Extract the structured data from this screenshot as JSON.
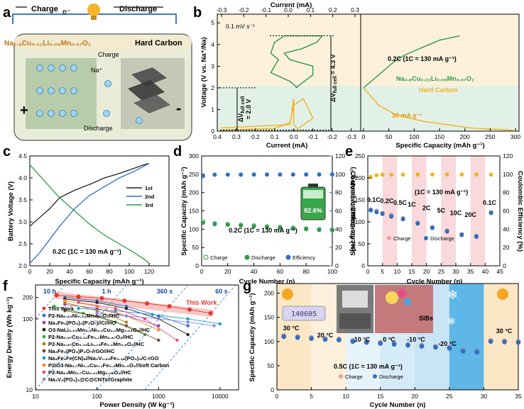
{
  "panels": {
    "a": {
      "label": "a",
      "charge_top": "Charge",
      "electron": "e⁻",
      "discharge_top": "Discharge",
      "cathode": "Na₀.₈Cu₀.₂₂Li₀.₀₈Mn₀.₆₇O₂",
      "anode": "Hard Carbon",
      "ion": "Na⁺",
      "charge_arrow": "Charge",
      "discharge_arrow": "Discharge",
      "plus": "+",
      "minus": "-"
    },
    "b": {
      "label": "b",
      "sweep": "0.1 mV s⁻¹",
      "dv_full": "ΔV",
      "dv_full_sub": "full cell",
      "dv_full_val": "= 4.3 V",
      "dv_half": "ΔV",
      "dv_half_sub": "full cell",
      "dv_half_val": "= 2.0 V",
      "rate_text": "0.2C (1C = 130 mA g⁻¹)",
      "cathode_label": "Na₀.₈Cu₀.₂₂Li₀.₀₈Mn₀.₆₇O₂",
      "anode_label": "Hard Carbon",
      "anode_rate": "30 mA g⁻¹",
      "top_axis_title": "Current (mA)",
      "left_axis_title": "Voltage (V vs. Na⁺/Na)",
      "bottom_left_title": "Current (mA)",
      "bottom_right_title": "Specific Capacity (mAh g⁻¹)",
      "top_ticks": [
        "-0.3",
        "-0.2",
        "-0.1",
        "0.0",
        "0.1",
        "0.2",
        "0.3"
      ],
      "bottom_left_ticks": [
        "0.4",
        "0.3",
        "0.2",
        "0.1",
        "0.0",
        "-0.1",
        "-0.2",
        "-0.3"
      ],
      "y_ticks": [
        "0",
        "1",
        "2",
        "3",
        "4",
        "5"
      ],
      "bottom_right_ticks": [
        "0",
        "50",
        "100",
        "150",
        "200",
        "250",
        "300"
      ]
    },
    "c": {
      "label": "c",
      "ylabel": "Battery Voltage (V)",
      "xlabel": "Specific Capacity (mAh g⁻¹)",
      "rate_text": "0.2C (1C = 130 mA g⁻¹)",
      "legend": [
        "1st",
        "2nd",
        "3rd"
      ]
    },
    "d": {
      "label": "d",
      "ylabel": "Specific Capacity (mAh g⁻¹)",
      "y2label": "Coulombic Efficiency (%)",
      "xlabel": "Cycle Number (n)",
      "rate_text": "0.2C (1C = 130 mA g⁻¹)",
      "battery_pct": "82.6%",
      "legend": [
        "Charge",
        "Discharge",
        "Efficiency"
      ]
    },
    "e": {
      "label": "e",
      "ylabel": "Specific Capacity (mAh g⁻¹)",
      "y2label": "Coulombic Efficiency (%)",
      "xlabel": "Cycle Number (n)",
      "rate_text": "(1C = 130 mA g⁻¹)",
      "rates": [
        "0.1C",
        "0.2C",
        "0.5C",
        "1C",
        "2C",
        "5C",
        "10C",
        "20C",
        "0.1C"
      ],
      "legend": [
        "Charge",
        "Discharge"
      ]
    },
    "f": {
      "label": "f",
      "ylabel": "Energy Density (Wh kg⁻¹)",
      "xlabel": "Power Density (W kg⁻¹)",
      "time_labels": [
        "10 h",
        "1 h",
        "360 s",
        "60 s"
      ],
      "this_work_note": "This Work",
      "legend": [
        "This Work",
        "P2-Na₀.₆₃Ni₀.₃₃Mn₀.₆₇O₂//HC",
        "Na₄Fe₃(PO₄)₂(P₂O₇)//C//HC",
        "O3-NaLi₀.₀₅Mn₀.₅Ni₀.₃Cu₀.₁Mg₀.₀₅O₂//HC",
        "P2-Na₀.₆₇Cu₀.₂₂Fe₀.₁Mn₀.₆₇O₂//HC",
        "P2-Na₀.₆₇Co₀.₁₅Li₀.₁₅Fe₀.₁Mn₀.₆O₂//HC",
        "Na₃Fe₂(PO₄)P₂O₇/rGO//HC",
        "Na₂Fe₂Fe(CN)₆//Na₃V₁.₈₅Fe₀.₁₅(PO₄)₃/C-rGO",
        "P2/O3-Na₀.₇Ni₀.₂Cu₀.₁Fe₀.₂Mn₀.₅O₂//Soft Carbon",
        "P2-Na₂₃Mn₀.₇Cu₀.₂₂Mg₀.₀₈O₂//HC",
        "Na₃V₂(PO₄)₃@C@CNTs//Graphite"
      ]
    },
    "g": {
      "label": "g",
      "ylabel": "Specific Capacity (mAh g⁻¹)",
      "xlabel": "Cycle Number (n)",
      "temps": [
        "30 °C",
        "20 °C",
        "10 °C",
        "0 °C",
        "-10 °C",
        "-20 °C",
        "30 °C"
      ],
      "rate_text": "0.5C (1C = 130 mA g⁻¹)",
      "legend": [
        "Charge",
        "Discharge"
      ],
      "scale_reading": "140605",
      "photo_label": "SIBs"
    }
  },
  "colors": {
    "green": "#2e9a4a",
    "orange": "#f2b21c",
    "blue": "#2f6fc7",
    "pink": "#f6c9cc",
    "lightorange": "#fbe6c6",
    "lightgreen": "#d9eee3",
    "lightblue": "#d6ebf8",
    "red": "#e8342b"
  },
  "chart_data": [
    {
      "panel": "b-left",
      "type": "line",
      "x_axis": "Current (mA)",
      "y_axis": "Voltage (V vs. Na+/Na)",
      "series": [
        {
          "name": "Na0.8Cu0.22Li0.08Mn0.67O2",
          "x": [
            -0.01,
            -0.1,
            -0.1,
            0.02,
            0.05,
            -0.04,
            -0.12,
            -0.15,
            0.05,
            0.1,
            0.12,
            0.08,
            0.12,
            0.02,
            -0.02
          ],
          "y": [
            2.0,
            2.6,
            3.0,
            3.3,
            3.6,
            3.8,
            4.1,
            4.4,
            4.4,
            4.1,
            3.6,
            3.3,
            2.7,
            2.3,
            2.0
          ]
        },
        {
          "name": "Hard Carbon",
          "x": [
            0.38,
            0.1,
            0.02,
            0.0,
            -0.05,
            -0.1,
            -0.02,
            0.0,
            0.0,
            0.02,
            0.38
          ],
          "y": [
            0.05,
            0.12,
            0.4,
            1.2,
            1.5,
            0.6,
            0.1,
            0.3,
            1.5,
            0.3,
            0.15
          ]
        }
      ],
      "xlim": [
        0.4,
        -0.35
      ],
      "ylim": [
        0,
        5.4
      ]
    },
    {
      "panel": "b-right",
      "type": "line",
      "x_axis": "Specific Capacity (mAh g-1)",
      "y_axis": "Voltage (V vs. Na+/Na)",
      "series": [
        {
          "name": "Na0.8Cu0.22Li0.08Mn0.67O2",
          "x": [
            0,
            30,
            60,
            80,
            100,
            130,
            150,
            170,
            190
          ],
          "y": [
            2.0,
            2.6,
            3.2,
            3.5,
            3.7,
            4.0,
            4.2,
            4.3,
            4.4
          ]
        },
        {
          "name": "Hard Carbon",
          "x": [
            0,
            30,
            60,
            90,
            120,
            150,
            180,
            210,
            240,
            270,
            290,
            300
          ],
          "y": [
            2.0,
            1.2,
            0.8,
            0.6,
            0.45,
            0.35,
            0.25,
            0.15,
            0.1,
            0.08,
            0.05,
            0.02
          ]
        }
      ],
      "xlim": [
        0,
        300
      ],
      "ylim": [
        0,
        5.4
      ]
    },
    {
      "panel": "c",
      "type": "line",
      "x_axis": "Specific Capacity (mAh g-1)",
      "y_axis": "Battery Voltage (V)",
      "xlim": [
        0,
        140
      ],
      "ylim": [
        2.0,
        4.5
      ],
      "series": [
        {
          "name": "1st",
          "x": [
            0,
            10,
            20,
            30,
            45,
            60,
            75,
            90,
            105,
            115,
            120
          ],
          "y": [
            2.9,
            3.1,
            3.3,
            3.55,
            3.72,
            3.85,
            4.0,
            4.1,
            4.22,
            4.3,
            4.33
          ]
        },
        {
          "name": "2nd",
          "x": [
            0,
            10,
            20,
            30,
            45,
            60,
            75,
            90,
            105,
            115,
            120
          ],
          "y": [
            2.06,
            2.3,
            2.6,
            2.9,
            3.3,
            3.6,
            3.8,
            4.0,
            4.15,
            4.27,
            4.33
          ]
        },
        {
          "name": "3rd",
          "x": [
            0,
            10,
            20,
            30,
            45,
            60,
            75,
            90,
            105,
            115,
            120
          ],
          "y": [
            4.3,
            4.05,
            3.8,
            3.55,
            3.25,
            2.95,
            2.7,
            2.5,
            2.3,
            2.15,
            2.06
          ]
        }
      ]
    },
    {
      "panel": "d",
      "type": "scatter",
      "x_axis": "Cycle Number (n)",
      "y_axis": "Specific Capacity (mAh g-1)",
      "xlim": [
        0,
        100
      ],
      "ylim": [
        0,
        300
      ],
      "y2lim": [
        0,
        120
      ],
      "series": [
        {
          "name": "Charge",
          "x": [
            1,
            10,
            20,
            30,
            40,
            50,
            60,
            70,
            80,
            90,
            100
          ],
          "y": [
            122,
            116,
            114,
            112,
            110,
            108,
            106,
            104,
            102,
            100,
            99
          ]
        },
        {
          "name": "Discharge",
          "x": [
            1,
            10,
            20,
            30,
            40,
            50,
            60,
            70,
            80,
            90,
            100
          ],
          "y": [
            118,
            114,
            112,
            110,
            108,
            106,
            104,
            102,
            100,
            98,
            97
          ]
        },
        {
          "name": "Efficiency",
          "x": [
            1,
            10,
            20,
            30,
            40,
            50,
            60,
            70,
            80,
            90,
            100
          ],
          "y": [
            98,
            99.5,
            99.6,
            99.6,
            99.7,
            99.7,
            99.7,
            99.8,
            99.8,
            99.8,
            99.8
          ]
        }
      ]
    },
    {
      "panel": "e",
      "type": "scatter",
      "x_axis": "Cycle Number (n)",
      "y_axis": "Specific Capacity (mAh g-1)",
      "xlim": [
        0,
        45
      ],
      "ylim": [
        0,
        250
      ],
      "y2lim": [
        0,
        120
      ],
      "series": [
        {
          "name": "Charge",
          "x": [
            1,
            3,
            5,
            8,
            12,
            17,
            22,
            27,
            32,
            37,
            42
          ],
          "y": [
            128,
            125,
            120,
            115,
            108,
            98,
            88,
            80,
            72,
            68,
            122
          ]
        },
        {
          "name": "Discharge",
          "x": [
            1,
            3,
            5,
            8,
            12,
            17,
            22,
            27,
            32,
            37,
            42
          ],
          "y": [
            126,
            122,
            118,
            112,
            106,
            96,
            86,
            78,
            70,
            66,
            120
          ]
        },
        {
          "name": "Efficiency",
          "x": [
            1,
            3,
            5,
            8,
            12,
            17,
            22,
            27,
            32,
            37,
            42
          ],
          "y": [
            97,
            99,
            99.5,
            99.5,
            99.6,
            99.6,
            99.7,
            99.7,
            99.7,
            99.7,
            99.6
          ]
        }
      ]
    },
    {
      "panel": "f",
      "type": "scatter",
      "x_axis": "Power Density (W kg-1)",
      "y_axis": "Energy Density (Wh kg-1)",
      "xscale": "log",
      "yscale": "log",
      "xlim": [
        10,
        20000
      ],
      "ylim": [
        10,
        300
      ],
      "series": [
        {
          "name": "This Work",
          "x": [
            22,
            50,
            120,
            280,
            650,
            1500,
            3200,
            7000
          ],
          "y": [
            215,
            205,
            195,
            180,
            165,
            150,
            135,
            120
          ]
        },
        {
          "name": "P2-Na0.63Ni0.33Mn0.67O2//HC",
          "x": [
            30,
            100,
            300,
            1000,
            3000
          ],
          "y": [
            200,
            180,
            150,
            110,
            80
          ]
        },
        {
          "name": "Na4Fe3(PO4)2(P2O7)//C//HC",
          "x": [
            30,
            100,
            300,
            1000
          ],
          "y": [
            160,
            140,
            110,
            80
          ]
        },
        {
          "name": "O3-NaLi0.05Mn0.5Ni0.3Cu0.1Mg0.05O2//HC",
          "x": [
            30,
            100,
            300,
            1000,
            3000
          ],
          "y": [
            190,
            170,
            140,
            100,
            60
          ]
        },
        {
          "name": "P2-Na0.67Cu0.22Fe0.1Mn0.67O2//HC",
          "x": [
            20,
            60,
            200,
            600
          ],
          "y": [
            150,
            120,
            90,
            60
          ]
        },
        {
          "name": "P2-Na0.67Co0.15Li0.15Fe0.1Mn0.6O2//HC",
          "x": [
            30,
            100,
            300
          ],
          "y": [
            170,
            130,
            90
          ]
        },
        {
          "name": "Na3Fe2(PO4)P2O7/rGO//HC",
          "x": [
            30,
            100,
            300,
            1000
          ],
          "y": [
            130,
            110,
            80,
            50
          ]
        },
        {
          "name": "Na2Fe2Fe(CN)6//Na3V1.85Fe0.15(PO4)3/C-rGO",
          "x": [
            50,
            200,
            800,
            3000,
            10000
          ],
          "y": [
            140,
            130,
            115,
            100,
            85
          ]
        },
        {
          "name": "P2/O3-Na0.7Ni0.2Cu0.1Fe0.2Mn0.5O2//Soft Carbon",
          "x": [
            30,
            100,
            300,
            1000
          ],
          "y": [
            180,
            150,
            110,
            70
          ]
        },
        {
          "name": "P2-Na2/3Mn0.7Cu0.22Mg0.08O2//HC",
          "x": [
            50,
            200,
            600,
            2000
          ],
          "y": [
            170,
            140,
            100,
            50
          ]
        },
        {
          "name": "Na3V2(PO4)3@C@CNTs//Graphite",
          "x": [
            100,
            300,
            1000,
            3000,
            8000
          ],
          "y": [
            120,
            110,
            100,
            90,
            80
          ]
        }
      ]
    },
    {
      "panel": "g",
      "type": "scatter",
      "x_axis": "Cycle Number (n)",
      "y_axis": "Specific Capacity (mAh g-1)",
      "xlim": [
        0,
        35
      ],
      "ylim": [
        0,
        220
      ],
      "series": [
        {
          "name": "Charge",
          "x": [
            1,
            3,
            5,
            7,
            9,
            11,
            13,
            15,
            17,
            19,
            21,
            23,
            25,
            27,
            29,
            31,
            33,
            35
          ],
          "y": [
            112,
            110,
            108,
            106,
            105,
            102,
            100,
            98,
            96,
            94,
            92,
            90,
            88,
            82,
            80,
            102,
            101,
            100
          ]
        },
        {
          "name": "Discharge",
          "x": [
            1,
            3,
            5,
            7,
            9,
            11,
            13,
            15,
            17,
            19,
            21,
            23,
            25,
            27,
            29,
            31,
            33,
            35
          ],
          "y": [
            110,
            108,
            106,
            104,
            103,
            100,
            98,
            96,
            94,
            92,
            90,
            88,
            86,
            80,
            78,
            100,
            99,
            98
          ]
        }
      ]
    }
  ]
}
